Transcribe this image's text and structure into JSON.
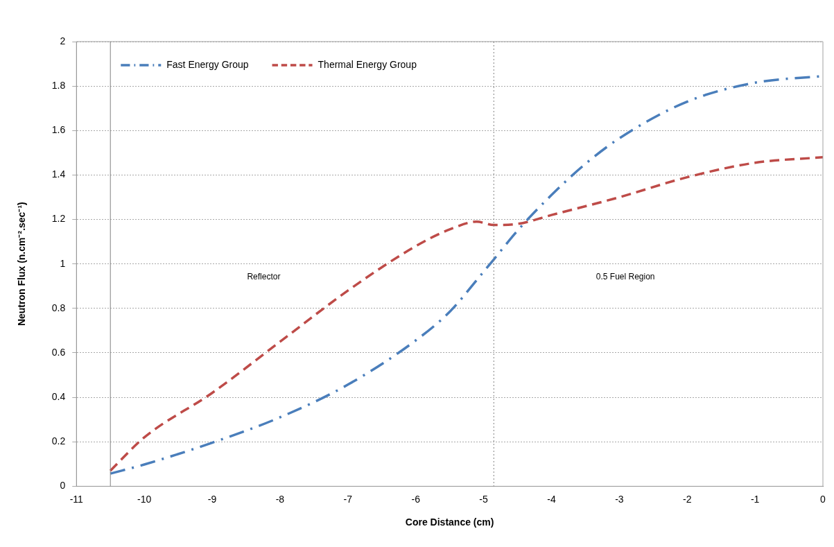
{
  "chart_data": {
    "type": "line",
    "xlabel": "Core Distance (cm)",
    "ylabel": "Neutron Flux (n.cm⁻².sec⁻¹)",
    "xlim": [
      -11,
      0
    ],
    "xticks": [
      -11,
      -10,
      -9,
      -8,
      -7,
      -6,
      -5,
      -4,
      -3,
      -2,
      -1,
      0
    ],
    "ylim": [
      0,
      2
    ],
    "yticks": [
      0,
      0.2,
      0.4,
      0.6,
      0.8,
      1,
      1.2,
      1.4,
      1.6,
      1.8,
      2
    ],
    "grid": "y",
    "legend": "top left",
    "marker": "none",
    "series": [
      {
        "name": "Fast Energy Group",
        "color": "#4a7ebb",
        "line_style": "dash-dot",
        "x": [
          -10.5,
          -10,
          -9,
          -8,
          -7,
          -6,
          -5.5,
          -5,
          -4.85,
          -4.5,
          -4,
          -3.5,
          -3,
          -2,
          -1,
          0
        ],
        "values": [
          0.057,
          0.098,
          0.196,
          0.31,
          0.457,
          0.656,
          0.785,
          0.965,
          1.02,
          1.15,
          1.31,
          1.45,
          1.565,
          1.73,
          1.815,
          1.845
        ]
      },
      {
        "name": "Thermal Energy Group",
        "color": "#be4b48",
        "line_style": "dashed",
        "x": [
          -10.5,
          -10,
          -9,
          -8,
          -7,
          -6,
          -5.5,
          -5.1,
          -4.85,
          -4.5,
          -4,
          -3,
          -2,
          -1,
          0
        ],
        "values": [
          0.07,
          0.22,
          0.42,
          0.65,
          0.88,
          1.08,
          1.155,
          1.19,
          1.175,
          1.18,
          1.22,
          1.3,
          1.39,
          1.455,
          1.48
        ]
      }
    ],
    "ref_lines": [
      {
        "axis": "x",
        "value": -10.5,
        "color": "#808080",
        "line_style": "solid"
      },
      {
        "axis": "x",
        "value": -4.85,
        "color": "#808080",
        "line_style": "dotted"
      }
    ],
    "annotations": [
      "Reflector",
      "0.5 Fuel Region"
    ]
  }
}
